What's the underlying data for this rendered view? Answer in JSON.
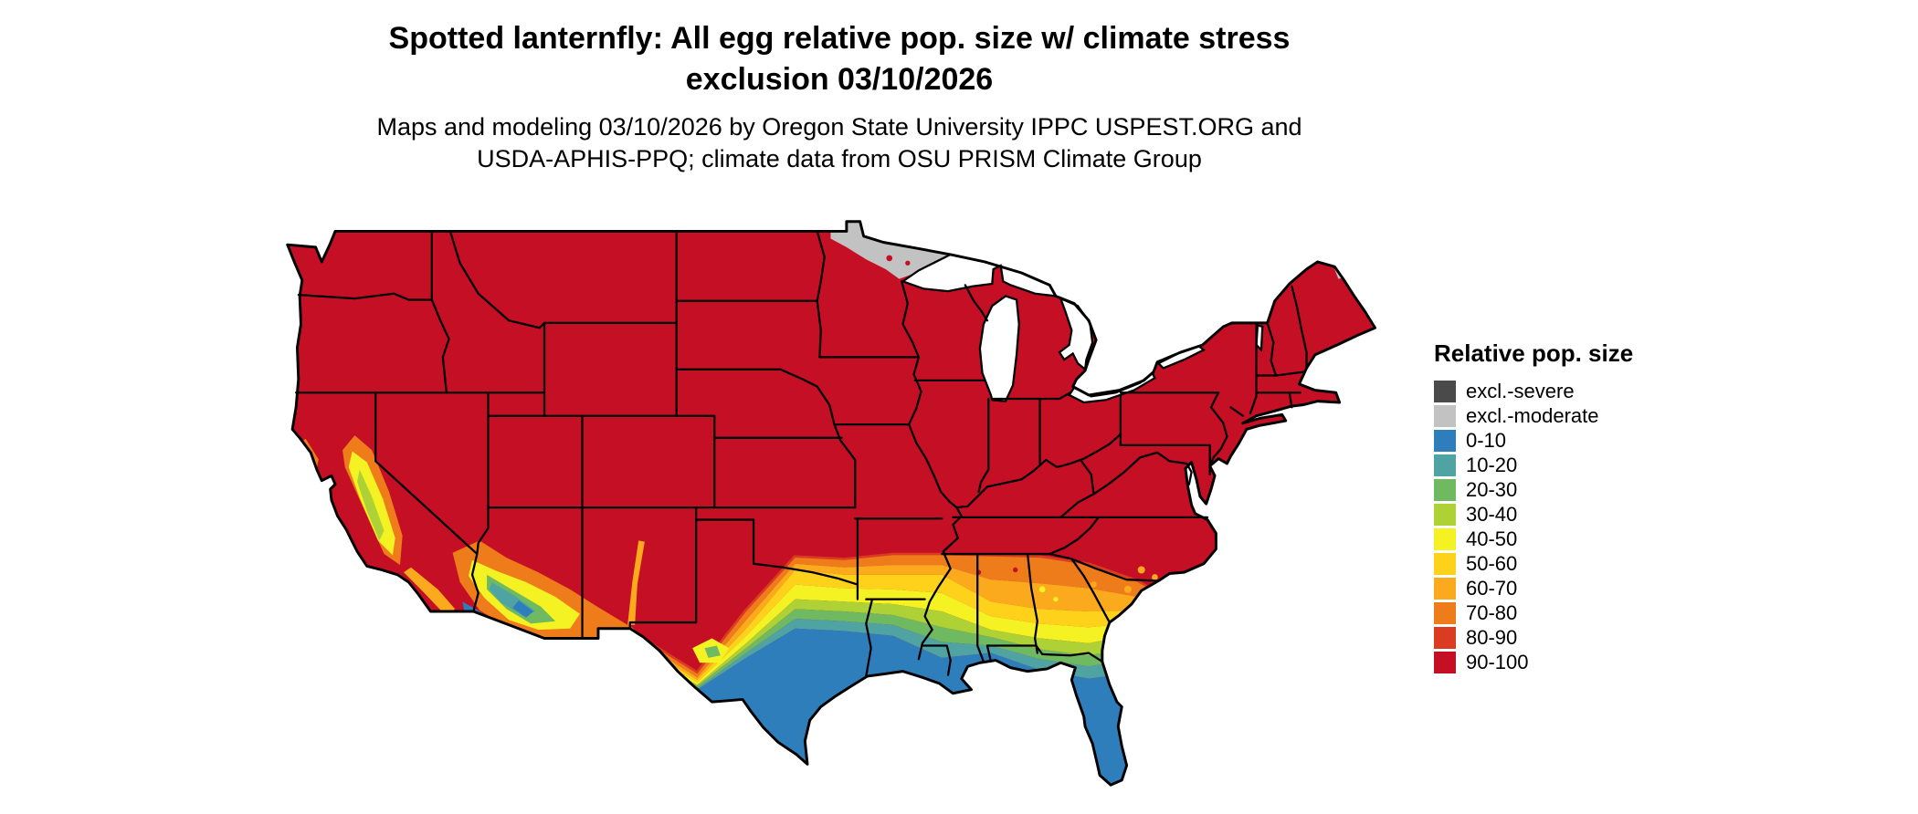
{
  "title": {
    "line1": "Spotted lanternfly: All egg relative pop. size w/ climate stress",
    "line2": "exclusion 03/10/2026"
  },
  "subtitle": {
    "line1": "Maps and modeling 03/10/2026 by Oregon State University IPPC USPEST.ORG and",
    "line2": "USDA-APHIS-PPQ; climate data from OSU PRISM Climate Group"
  },
  "legend": {
    "title": "Relative pop. size",
    "items": [
      {
        "label": "excl.-severe",
        "color": "#4a4a4a"
      },
      {
        "label": "excl.-moderate",
        "color": "#c2c2c2"
      },
      {
        "label": "0-10",
        "color": "#2e7ebc"
      },
      {
        "label": "10-20",
        "color": "#4fa3a3"
      },
      {
        "label": "20-30",
        "color": "#6fba61"
      },
      {
        "label": "30-40",
        "color": "#aed136"
      },
      {
        "label": "40-50",
        "color": "#f4f222"
      },
      {
        "label": "50-60",
        "color": "#fed21a"
      },
      {
        "label": "60-70",
        "color": "#fbaa1d"
      },
      {
        "label": "70-80",
        "color": "#ee7c1b"
      },
      {
        "label": "80-90",
        "color": "#da3b21"
      },
      {
        "label": "90-100",
        "color": "#c50f24"
      }
    ]
  },
  "map": {
    "background": "#ffffff",
    "lake_color": "#ffffff",
    "border_color": "#000000"
  }
}
